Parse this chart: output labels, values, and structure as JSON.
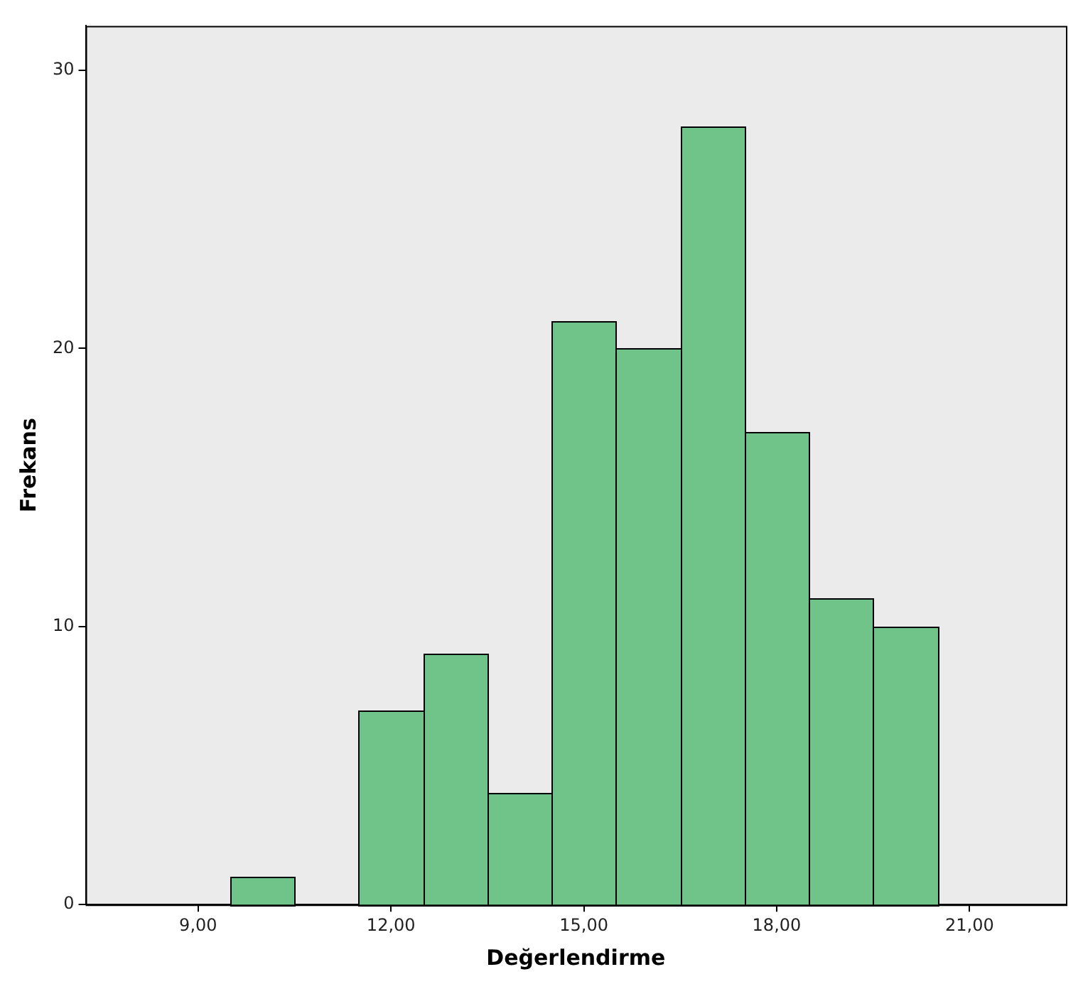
{
  "chart_data": {
    "type": "histogram",
    "xlabel": "Değerlendirme",
    "ylabel": "Frekans",
    "bins": [
      9.5,
      10.5,
      11.5,
      12.5,
      13.5,
      14.5,
      15.5,
      16.5,
      17.5,
      18.5,
      19.5,
      20.5
    ],
    "values": [
      1,
      0,
      7,
      9,
      4,
      21,
      20,
      28,
      17,
      11,
      10
    ],
    "color": "#70c48a",
    "xlim": [
      7.25,
      22.5
    ],
    "xticks": [
      {
        "value": 9,
        "label": "9,00"
      },
      {
        "value": 12,
        "label": "12,00"
      },
      {
        "value": 15,
        "label": "15,00"
      },
      {
        "value": 18,
        "label": "18,00"
      },
      {
        "value": 21,
        "label": "21,00"
      }
    ],
    "ylim": [
      0,
      31.6
    ],
    "yticks": [
      0,
      10,
      20,
      30
    ],
    "grid": false,
    "legend": false
  }
}
